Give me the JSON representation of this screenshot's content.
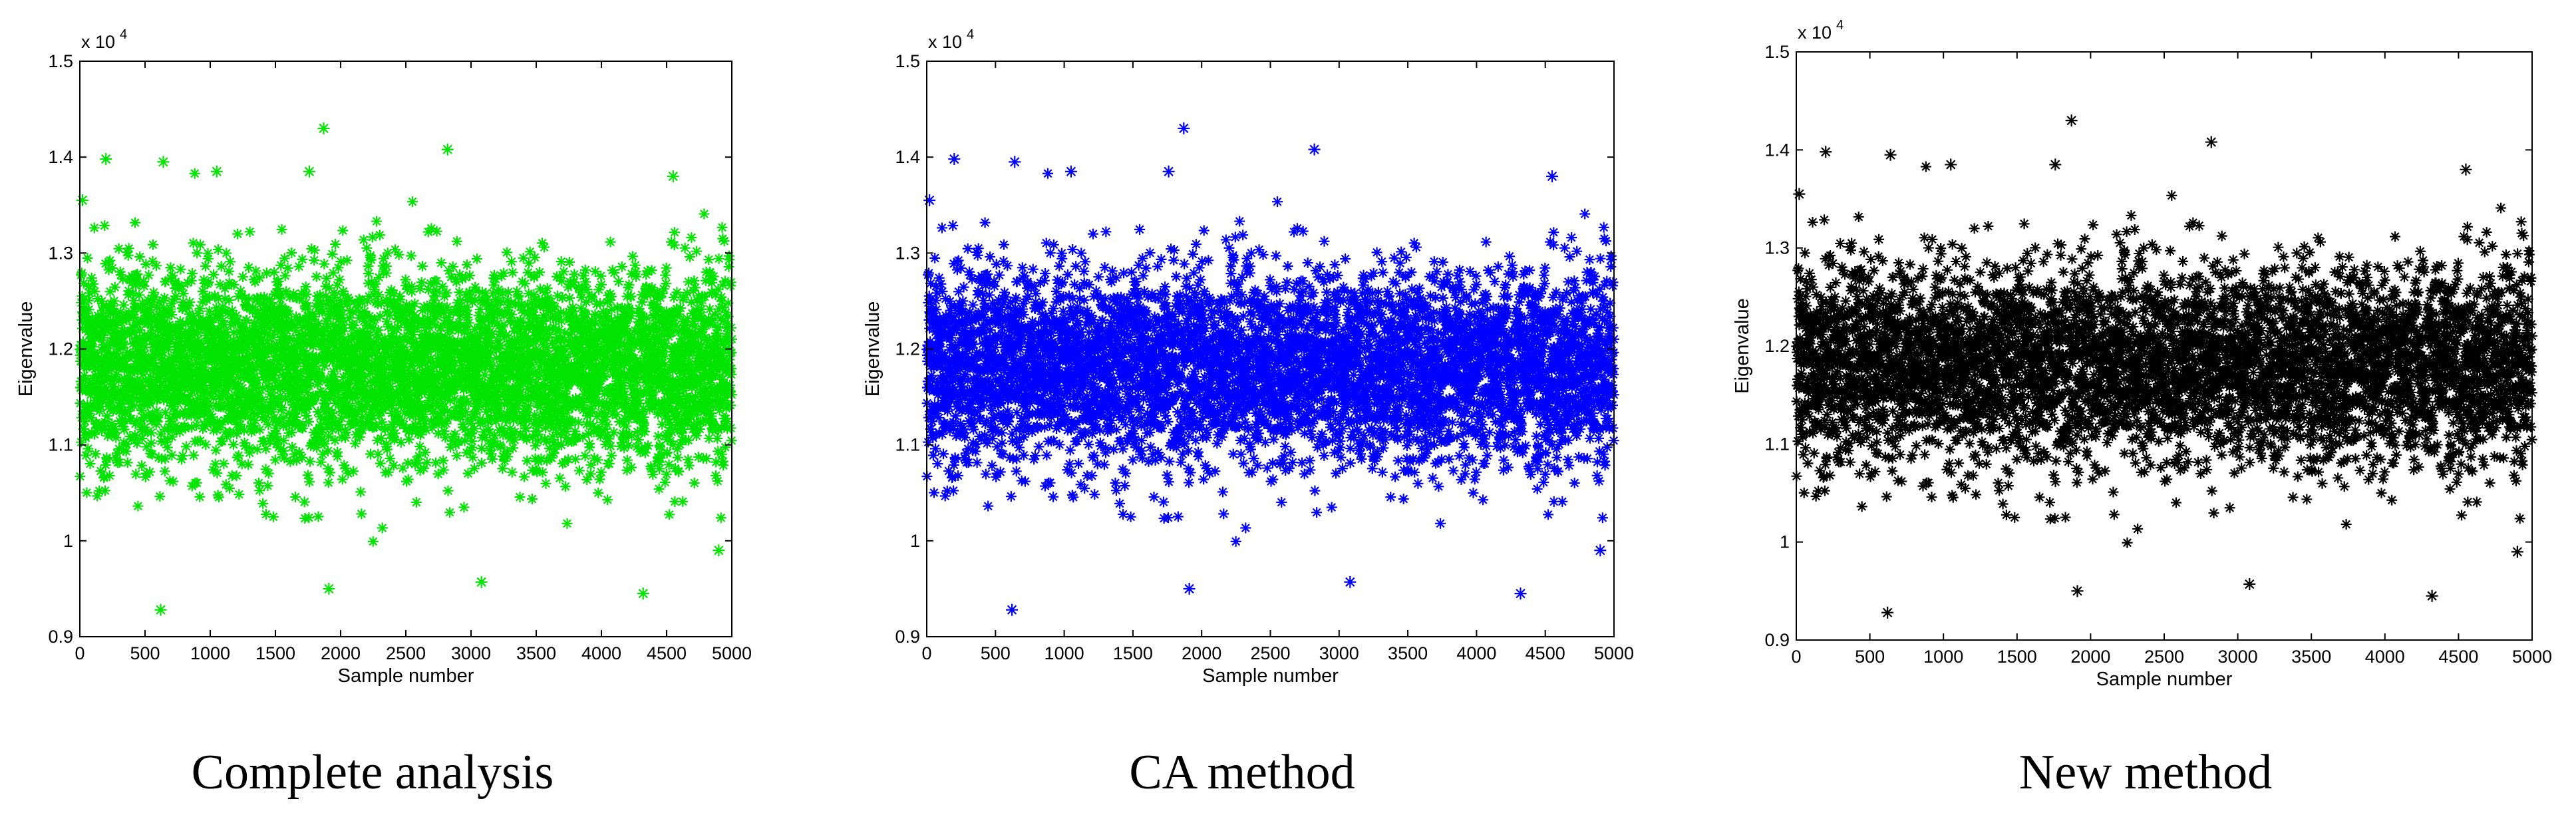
{
  "chart_data": [
    {
      "type": "scatter",
      "marker": "asterisk",
      "color": "#00e400",
      "caption": "Complete analysis",
      "xlabel": "Sample number",
      "ylabel": "Eigenvalue",
      "exponent_label": "x 10",
      "exponent_power": "4",
      "xlim": [
        0,
        5000
      ],
      "ylim": [
        0.9,
        1.5
      ],
      "xticks": [
        "0",
        "500",
        "1000",
        "1500",
        "2000",
        "2500",
        "3000",
        "3500",
        "4000",
        "4500",
        "5000"
      ],
      "yticks": [
        "0.9",
        "1",
        "1.1",
        "1.2",
        "1.3",
        "1.4",
        "1.5"
      ],
      "grid": false,
      "n_points": 5000,
      "y_center": 1.18,
      "y_spread": 0.05,
      "highlighted_points": [
        {
          "x": 20,
          "y": 1.355
        },
        {
          "x": 200,
          "y": 1.398
        },
        {
          "x": 620,
          "y": 0.928
        },
        {
          "x": 640,
          "y": 1.395
        },
        {
          "x": 1050,
          "y": 1.385
        },
        {
          "x": 1870,
          "y": 1.43
        },
        {
          "x": 1760,
          "y": 1.385
        },
        {
          "x": 1910,
          "y": 0.95
        },
        {
          "x": 2820,
          "y": 1.408
        },
        {
          "x": 3080,
          "y": 0.957
        },
        {
          "x": 4320,
          "y": 0.945
        },
        {
          "x": 4550,
          "y": 1.38
        },
        {
          "x": 4900,
          "y": 0.99
        }
      ]
    },
    {
      "type": "scatter",
      "marker": "asterisk",
      "color": "#0000ff",
      "caption": "CA method",
      "xlabel": "Sample number",
      "ylabel": "Eigenvalue",
      "exponent_label": "x 10",
      "exponent_power": "4",
      "xlim": [
        0,
        5000
      ],
      "ylim": [
        0.9,
        1.5
      ],
      "xticks": [
        "0",
        "500",
        "1000",
        "1500",
        "2000",
        "2500",
        "3000",
        "3500",
        "4000",
        "4500",
        "5000"
      ],
      "yticks": [
        "0.9",
        "1",
        "1.1",
        "1.2",
        "1.3",
        "1.4",
        "1.5"
      ],
      "grid": false,
      "n_points": 5000,
      "y_center": 1.18,
      "y_spread": 0.05,
      "highlighted_points": [
        {
          "x": 20,
          "y": 1.355
        },
        {
          "x": 200,
          "y": 1.398
        },
        {
          "x": 620,
          "y": 0.928
        },
        {
          "x": 640,
          "y": 1.395
        },
        {
          "x": 1050,
          "y": 1.385
        },
        {
          "x": 1870,
          "y": 1.43
        },
        {
          "x": 1760,
          "y": 1.385
        },
        {
          "x": 1910,
          "y": 0.95
        },
        {
          "x": 2820,
          "y": 1.408
        },
        {
          "x": 3080,
          "y": 0.957
        },
        {
          "x": 4320,
          "y": 0.945
        },
        {
          "x": 4550,
          "y": 1.38
        },
        {
          "x": 4900,
          "y": 0.99
        }
      ]
    },
    {
      "type": "scatter",
      "marker": "asterisk",
      "color": "#000000",
      "caption": "New method",
      "xlabel": "Sample number",
      "ylabel": "Eigenvalue",
      "exponent_label": "x 10",
      "exponent_power": "4",
      "xlim": [
        0,
        5000
      ],
      "ylim": [
        0.9,
        1.5
      ],
      "xticks": [
        "0",
        "500",
        "1000",
        "1500",
        "2000",
        "2500",
        "3000",
        "3500",
        "4000",
        "4500",
        "5000"
      ],
      "yticks": [
        "0.9",
        "1",
        "1.1",
        "1.2",
        "1.3",
        "1.4",
        "1.5"
      ],
      "grid": false,
      "n_points": 5000,
      "y_center": 1.18,
      "y_spread": 0.05,
      "highlighted_points": [
        {
          "x": 20,
          "y": 1.355
        },
        {
          "x": 200,
          "y": 1.398
        },
        {
          "x": 620,
          "y": 0.928
        },
        {
          "x": 640,
          "y": 1.395
        },
        {
          "x": 1050,
          "y": 1.385
        },
        {
          "x": 1870,
          "y": 1.43
        },
        {
          "x": 1760,
          "y": 1.385
        },
        {
          "x": 1910,
          "y": 0.95
        },
        {
          "x": 2820,
          "y": 1.408
        },
        {
          "x": 3080,
          "y": 0.957
        },
        {
          "x": 4320,
          "y": 0.945
        },
        {
          "x": 4550,
          "y": 1.38
        },
        {
          "x": 4900,
          "y": 0.99
        }
      ]
    }
  ]
}
